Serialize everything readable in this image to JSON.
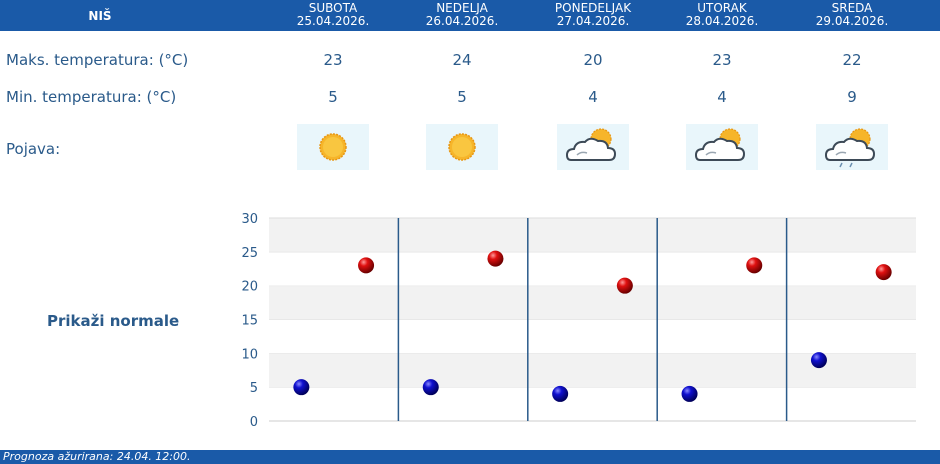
{
  "header": {
    "city": "NIŠ"
  },
  "days": [
    {
      "name": "SUBOTA",
      "date": "25.04.2026.",
      "max": "23",
      "min": "5",
      "icon": "sun-icon"
    },
    {
      "name": "NEDELJA",
      "date": "26.04.2026.",
      "max": "24",
      "min": "5",
      "icon": "sun-icon"
    },
    {
      "name": "PONEDELJAK",
      "date": "27.04.2026.",
      "max": "20",
      "min": "4",
      "icon": "partly-cloudy-icon"
    },
    {
      "name": "UTORAK",
      "date": "28.04.2026.",
      "max": "23",
      "min": "4",
      "icon": "partly-cloudy-icon"
    },
    {
      "name": "SREDA",
      "date": "29.04.2026.",
      "max": "22",
      "min": "9",
      "icon": "cloud-rain-sun-icon"
    }
  ],
  "labels": {
    "max": "Maks. temperatura: (°C)",
    "min": "Min. temperatura: (°C)",
    "phenomenon": "Pojava:"
  },
  "normals_link": "Prikaži normale",
  "footer": {
    "text": "Prognoza ažurirana:  24.04. 12:00."
  },
  "colors": {
    "bar": "#1a5aa8",
    "max_marker": "#cc0000",
    "min_marker": "#0000cc"
  },
  "chart_data": {
    "type": "scatter",
    "categories": [
      "SUBOTA",
      "NEDELJA",
      "PONEDELJAK",
      "UTORAK",
      "SREDA"
    ],
    "series": [
      {
        "values": [
          23,
          24,
          20,
          23,
          22
        ]
      },
      {
        "values": [
          5,
          5,
          4,
          4,
          9
        ]
      }
    ],
    "ylim": [
      0,
      30
    ],
    "yticks": [
      "0",
      "5",
      "10",
      "15",
      "20",
      "25",
      "30"
    ],
    "grid": true
  }
}
